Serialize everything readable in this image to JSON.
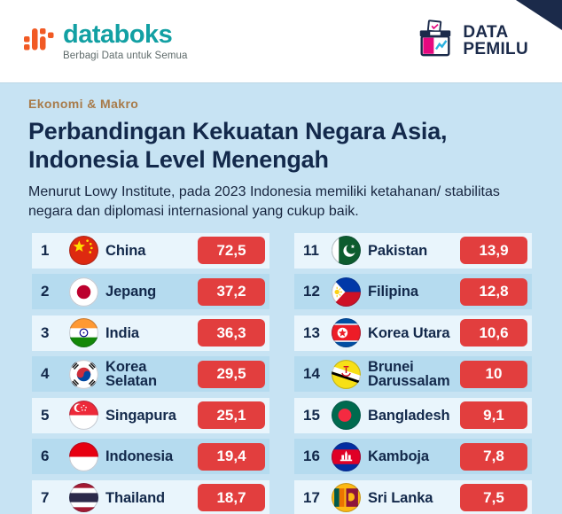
{
  "header": {
    "brand": "databoks",
    "tagline": "Berbagi Data untuk Semua",
    "pemilu_line1": "DATA",
    "pemilu_line2": "PEMILU"
  },
  "article": {
    "category": "Ekonomi & Makro",
    "title": "Perbandingan Kekuatan Negara Asia, Indonesia Level Menengah",
    "subtitle": "Menurut Lowy Institute, pada 2023 Indonesia memiliki ketahanan/ stabilitas negara dan diplomasi internasional yang cukup baik."
  },
  "chart_data": {
    "type": "table",
    "title": "Perbandingan Kekuatan Negara Asia, Indonesia Level Menengah",
    "note": "Menurut Lowy Institute, pada 2023 Indonesia memiliki ketahanan/ stabilitas negara dan diplomasi internasional yang cukup baik.",
    "columns": [
      "rank",
      "country",
      "score"
    ],
    "left": [
      {
        "rank": "1",
        "country": "China",
        "value": "72,5",
        "value_num": 72.5,
        "flag": "china",
        "flag_name": "china-flag-icon"
      },
      {
        "rank": "2",
        "country": "Jepang",
        "value": "37,2",
        "value_num": 37.2,
        "flag": "japan",
        "flag_name": "japan-flag-icon"
      },
      {
        "rank": "3",
        "country": "India",
        "value": "36,3",
        "value_num": 36.3,
        "flag": "india",
        "flag_name": "india-flag-icon"
      },
      {
        "rank": "4",
        "country": "Korea Selatan",
        "value": "29,5",
        "value_num": 29.5,
        "flag": "south-korea",
        "flag_name": "south-korea-flag-icon"
      },
      {
        "rank": "5",
        "country": "Singapura",
        "value": "25,1",
        "value_num": 25.1,
        "flag": "singapore",
        "flag_name": "singapore-flag-icon"
      },
      {
        "rank": "6",
        "country": "Indonesia",
        "value": "19,4",
        "value_num": 19.4,
        "flag": "indonesia",
        "flag_name": "indonesia-flag-icon"
      },
      {
        "rank": "7",
        "country": "Thailand",
        "value": "18,7",
        "value_num": 18.7,
        "flag": "thailand",
        "flag_name": "thailand-flag-icon"
      }
    ],
    "right": [
      {
        "rank": "11",
        "country": "Pakistan",
        "value": "13,9",
        "value_num": 13.9,
        "flag": "pakistan",
        "flag_name": "pakistan-flag-icon"
      },
      {
        "rank": "12",
        "country": "Filipina",
        "value": "12,8",
        "value_num": 12.8,
        "flag": "philippines",
        "flag_name": "philippines-flag-icon"
      },
      {
        "rank": "13",
        "country": "Korea Utara",
        "value": "10,6",
        "value_num": 10.6,
        "flag": "north-korea",
        "flag_name": "north-korea-flag-icon"
      },
      {
        "rank": "14",
        "country": "Brunei Darussalam",
        "value": "10",
        "value_num": 10,
        "flag": "brunei",
        "flag_name": "brunei-flag-icon"
      },
      {
        "rank": "15",
        "country": "Bangladesh",
        "value": "9,1",
        "value_num": 9.1,
        "flag": "bangladesh",
        "flag_name": "bangladesh-flag-icon"
      },
      {
        "rank": "16",
        "country": "Kamboja",
        "value": "7,8",
        "value_num": 7.8,
        "flag": "cambodia",
        "flag_name": "cambodia-flag-icon"
      },
      {
        "rank": "17",
        "country": "Sri Lanka",
        "value": "7,5",
        "value_num": 7.5,
        "flag": "sri-lanka",
        "flag_name": "sri-lanka-flag-icon"
      }
    ]
  },
  "colors": {
    "page_background": "#C7E3F3",
    "header_background": "#FFFFFF",
    "row_light": "#E9F5FC",
    "row_dark": "#B5DBEF",
    "score_pill_red": "#E23E3E",
    "score_text": "#FFFFFF",
    "headline_navy": "#13294B",
    "category_brown": "#A87B4A",
    "brand_teal": "#12A0A3",
    "brand_orange": "#F15A24",
    "pemilu_navy": "#1B2A4A",
    "pemilu_magenta": "#E5097F",
    "pemilu_blue": "#2BB1E0"
  }
}
